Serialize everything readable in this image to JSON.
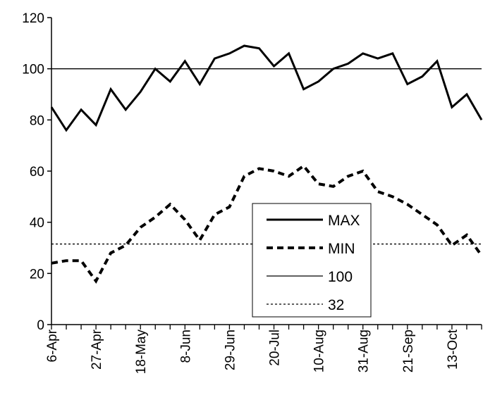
{
  "chart_data": {
    "type": "line",
    "x_tick_labels": [
      "6-Apr",
      "27-Apr",
      "18-May",
      "8-Jun",
      "29-Jun",
      "20-Jul",
      "10-Aug",
      "31-Aug",
      "21-Sep",
      "13-Oct"
    ],
    "ylim": [
      0,
      120
    ],
    "y_ticks": [
      0,
      20,
      40,
      60,
      80,
      100,
      120
    ],
    "grid": false,
    "legend_position": "center-right",
    "series": [
      {
        "name": "MAX",
        "style": "solid-thick",
        "color": "#000000",
        "values": [
          85,
          76,
          84,
          78,
          92,
          84,
          91,
          100,
          95,
          103,
          94,
          104,
          106,
          109,
          108,
          101,
          106,
          92,
          95,
          100,
          102,
          106,
          104,
          106,
          94,
          97,
          103,
          85,
          90,
          80
        ]
      },
      {
        "name": "MIN",
        "style": "dashed-thick",
        "color": "#000000",
        "values": [
          24,
          25,
          25,
          17,
          28,
          31,
          38,
          42,
          47,
          41,
          33,
          43,
          46,
          58,
          61,
          60,
          58,
          62,
          55,
          54,
          58,
          60,
          52,
          50,
          47,
          43,
          39,
          31,
          35,
          27
        ]
      },
      {
        "name": "100",
        "style": "solid-thin",
        "color": "#000000",
        "constant": 100
      },
      {
        "name": "32",
        "style": "dotted-thin",
        "color": "#000000",
        "constant": 31.5
      }
    ]
  }
}
